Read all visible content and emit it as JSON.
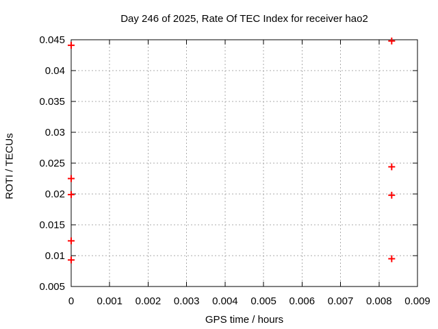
{
  "window": {
    "background": "#ffffff"
  },
  "chart_data": {
    "type": "scatter",
    "title": "Day 246 of 2025, Rate Of TEC Index for receiver hao2",
    "xlabel": "GPS time / hours",
    "ylabel": "ROTI / TECUs",
    "xlim": [
      0,
      0.009
    ],
    "ylim": [
      0.005,
      0.045
    ],
    "x_ticks": [
      {
        "v": 0,
        "label": "0"
      },
      {
        "v": 0.001,
        "label": "0.001"
      },
      {
        "v": 0.002,
        "label": "0.002"
      },
      {
        "v": 0.003,
        "label": "0.003"
      },
      {
        "v": 0.004,
        "label": "0.004"
      },
      {
        "v": 0.005,
        "label": "0.005"
      },
      {
        "v": 0.006,
        "label": "0.006"
      },
      {
        "v": 0.007,
        "label": "0.007"
      },
      {
        "v": 0.008,
        "label": "0.008"
      },
      {
        "v": 0.009,
        "label": "0.009"
      }
    ],
    "y_ticks": [
      {
        "v": 0.005,
        "label": "0.005"
      },
      {
        "v": 0.01,
        "label": "0.01"
      },
      {
        "v": 0.015,
        "label": "0.015"
      },
      {
        "v": 0.02,
        "label": "0.02"
      },
      {
        "v": 0.025,
        "label": "0.025"
      },
      {
        "v": 0.03,
        "label": "0.03"
      },
      {
        "v": 0.035,
        "label": "0.035"
      },
      {
        "v": 0.04,
        "label": "0.04"
      },
      {
        "v": 0.045,
        "label": "0.045"
      }
    ],
    "grid": true,
    "legend": "none",
    "series": [
      {
        "marker": "plus",
        "color": "#ff0000",
        "points": [
          [
            0,
            0.0441
          ],
          [
            0,
            0.0225
          ],
          [
            0,
            0.0199
          ],
          [
            0,
            0.0124
          ],
          [
            0,
            0.0093
          ],
          [
            0.00833,
            0.0448
          ],
          [
            0.00833,
            0.0244
          ],
          [
            0.00833,
            0.0198
          ],
          [
            0.00833,
            0.0095
          ]
        ]
      }
    ],
    "colors": {
      "marker_red": "#ff0000",
      "grid_gray": "#aaaaaa",
      "axis_black": "#000000",
      "text": "#000000",
      "background": "#ffffff"
    }
  }
}
